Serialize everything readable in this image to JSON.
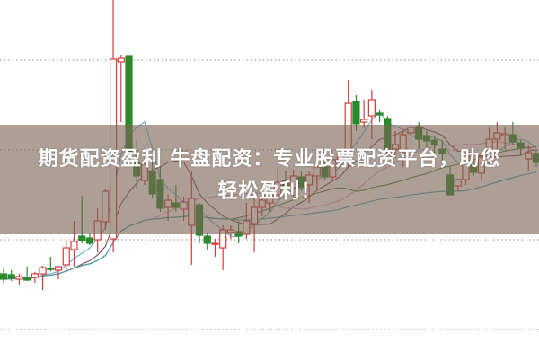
{
  "title": {
    "line1": "期货配资盈利 牛盘配资：专业股票配资平台，助您",
    "line2": "轻松盈利！"
  },
  "colors": {
    "up": "#d23c3c",
    "down": "#2b8a2b",
    "grid": "#8a8a8a",
    "ma": [
      "#6aaed0",
      "#7a4a55",
      "#e6a0d2",
      "#5a7a3a",
      "#4a9fb0"
    ]
  },
  "chart_data": {
    "type": "candlestick",
    "title": "",
    "xlabel": "",
    "ylabel": "",
    "ylim": [
      0,
      40.1
    ],
    "grid": true,
    "gridlines": [
      3.4,
      13.4,
      23.4,
      33.4
    ],
    "moving_average_periods": [
      5,
      10,
      20,
      30,
      60
    ],
    "candles_ohlc": [
      [
        9.6,
        10.3,
        8.6,
        9.0
      ],
      [
        9.5,
        10.0,
        8.8,
        9.1
      ],
      [
        9.0,
        9.6,
        8.4,
        9.3
      ],
      [
        9.2,
        10.4,
        8.8,
        8.9
      ],
      [
        9.2,
        9.8,
        8.6,
        9.6
      ],
      [
        9.6,
        10.5,
        7.8,
        10.3
      ],
      [
        10.2,
        11.5,
        9.9,
        10.1
      ],
      [
        10.0,
        10.5,
        9.0,
        10.4
      ],
      [
        10.6,
        13.2,
        9.8,
        12.5
      ],
      [
        12.3,
        15.5,
        10.4,
        13.2
      ],
      [
        13.8,
        18.3,
        13.0,
        13.3
      ],
      [
        13.6,
        14.2,
        12.8,
        13.0
      ],
      [
        13.4,
        16.9,
        12.0,
        15.5
      ],
      [
        15.4,
        19.0,
        14.5,
        18.8
      ],
      [
        13.5,
        40.1,
        12.0,
        33.5
      ],
      [
        33.2,
        34.0,
        26.5,
        33.6
      ],
      [
        33.9,
        33.9,
        23.0,
        23.2
      ],
      [
        22.0,
        24.5,
        19.0,
        20.5
      ],
      [
        20.0,
        22.5,
        19.5,
        21.8
      ],
      [
        21.0,
        22.0,
        18.0,
        18.5
      ],
      [
        20.1,
        21.5,
        16.5,
        16.9
      ],
      [
        17.0,
        18.5,
        15.5,
        17.8
      ],
      [
        17.5,
        19.5,
        16.5,
        17.0
      ],
      [
        16.8,
        18.2,
        15.5,
        17.6
      ],
      [
        15.0,
        21.0,
        10.6,
        18.0
      ],
      [
        17.3,
        17.5,
        13.0,
        13.9
      ],
      [
        13.8,
        14.2,
        12.2,
        13.0
      ],
      [
        12.9,
        13.5,
        11.5,
        13.0
      ],
      [
        12.5,
        15.0,
        10.0,
        14.5
      ],
      [
        14.2,
        15.0,
        13.5,
        14.5
      ],
      [
        14.3,
        15.5,
        13.0,
        13.8
      ],
      [
        14.0,
        17.5,
        13.5,
        15.5
      ],
      [
        15.2,
        18.0,
        12.0,
        17.0
      ],
      [
        17.0,
        18.5,
        16.0,
        17.8
      ],
      [
        17.5,
        19.0,
        16.5,
        18.3
      ],
      [
        18.4,
        21.5,
        17.8,
        19.8
      ],
      [
        20.0,
        21.0,
        18.5,
        19.0
      ],
      [
        19.2,
        21.2,
        18.0,
        20.5
      ],
      [
        20.4,
        21.0,
        18.8,
        19.2
      ],
      [
        19.5,
        21.0,
        17.5,
        20.6
      ],
      [
        20.5,
        22.0,
        19.0,
        21.5
      ],
      [
        21.5,
        22.5,
        20.0,
        20.4
      ],
      [
        20.4,
        22.8,
        20.0,
        22.3
      ],
      [
        22.2,
        23.5,
        21.5,
        23.0
      ],
      [
        22.8,
        31.2,
        21.5,
        28.6
      ],
      [
        28.8,
        29.5,
        25.5,
        26.3
      ],
      [
        26.5,
        29.0,
        25.8,
        26.8
      ],
      [
        27.2,
        30.1,
        24.6,
        29.0
      ],
      [
        27.5,
        27.9,
        26.5,
        27.3
      ],
      [
        26.9,
        27.2,
        22.0,
        23.0
      ],
      [
        23.5,
        25.5,
        22.5,
        24.0
      ],
      [
        23.2,
        25.5,
        21.5,
        25.1
      ],
      [
        25.3,
        26.5,
        24.0,
        25.9
      ],
      [
        25.9,
        26.5,
        23.5,
        24.6
      ],
      [
        25.0,
        25.5,
        23.5,
        24.4
      ],
      [
        24.5,
        25.0,
        23.0,
        24.0
      ],
      [
        23.5,
        24.5,
        22.0,
        23.0
      ],
      [
        20.6,
        21.5,
        18.5,
        18.4
      ],
      [
        19.4,
        20.2,
        18.8,
        20.1
      ],
      [
        20.1,
        23.2,
        19.5,
        22.9
      ],
      [
        21.7,
        22.3,
        20.5,
        20.9
      ],
      [
        20.8,
        23.0,
        20.0,
        22.6
      ],
      [
        22.6,
        26.0,
        21.5,
        24.6
      ],
      [
        24.6,
        26.5,
        23.0,
        25.3
      ],
      [
        25.0,
        26.0,
        23.5,
        25.2
      ],
      [
        25.1,
        26.5,
        24.0,
        24.3
      ],
      [
        24.2,
        24.5,
        22.8,
        23.6
      ],
      [
        22.4,
        24.0,
        21.0,
        23.1
      ],
      [
        23.0,
        23.5,
        21.5,
        22.0
      ]
    ]
  }
}
